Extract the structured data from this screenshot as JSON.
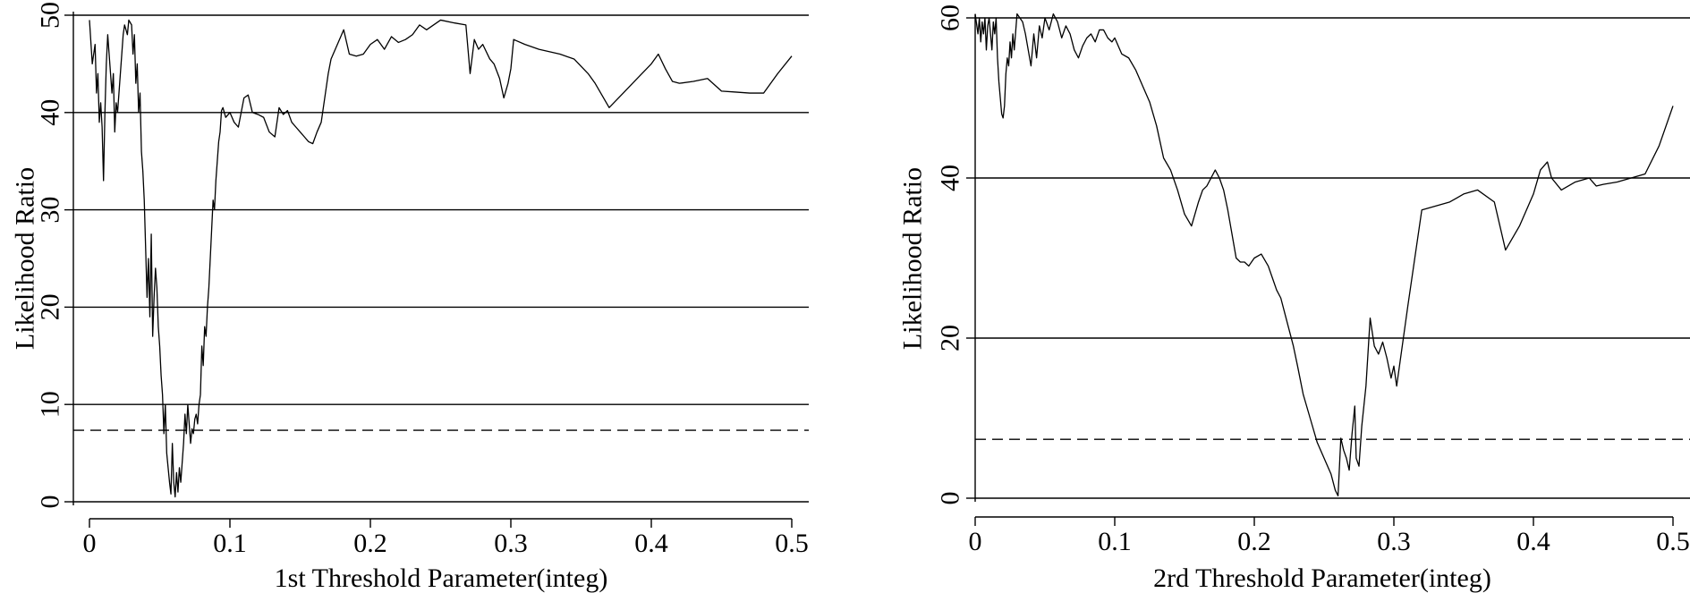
{
  "chart_data": [
    {
      "type": "line",
      "xlabel": "1st Threshold Parameter(integ)",
      "ylabel": "Likelihood Ratio",
      "xlim": [
        0,
        0.5
      ],
      "ylim": [
        0,
        50
      ],
      "xticks": [
        0,
        0.1,
        0.2,
        0.3,
        0.4,
        0.5
      ],
      "yticks": [
        0,
        10,
        20,
        30,
        40,
        50
      ],
      "grid": "horizontal",
      "critical_value": 7.35,
      "series": [
        {
          "x": [
            0.0,
            0.002,
            0.004,
            0.005,
            0.006,
            0.007,
            0.008,
            0.009,
            0.01,
            0.011,
            0.012,
            0.013,
            0.014,
            0.016,
            0.017,
            0.018,
            0.019,
            0.02,
            0.022,
            0.023,
            0.024,
            0.025,
            0.027,
            0.028,
            0.03,
            0.031,
            0.032,
            0.033,
            0.034,
            0.035,
            0.036,
            0.037,
            0.038,
            0.039,
            0.04,
            0.041,
            0.042,
            0.043,
            0.044,
            0.045,
            0.046,
            0.047,
            0.048,
            0.049,
            0.05,
            0.051,
            0.052,
            0.053,
            0.054,
            0.055,
            0.056,
            0.057,
            0.058,
            0.059,
            0.06,
            0.061,
            0.062,
            0.063,
            0.064,
            0.065,
            0.066,
            0.067,
            0.068,
            0.069,
            0.07,
            0.071,
            0.072,
            0.073,
            0.074,
            0.075,
            0.076,
            0.077,
            0.078,
            0.079,
            0.08,
            0.081,
            0.082,
            0.083,
            0.084,
            0.085,
            0.086,
            0.087,
            0.088,
            0.089,
            0.09,
            0.091,
            0.092,
            0.093,
            0.094,
            0.095,
            0.097,
            0.1,
            0.103,
            0.106,
            0.11,
            0.113,
            0.116,
            0.12,
            0.124,
            0.128,
            0.132,
            0.135,
            0.138,
            0.141,
            0.144,
            0.147,
            0.15,
            0.153,
            0.156,
            0.159,
            0.162,
            0.165,
            0.168,
            0.17,
            0.172,
            0.175,
            0.178,
            0.181,
            0.185,
            0.19,
            0.195,
            0.2,
            0.205,
            0.21,
            0.215,
            0.22,
            0.225,
            0.23,
            0.235,
            0.24,
            0.25,
            0.26,
            0.268,
            0.271,
            0.274,
            0.277,
            0.28,
            0.285,
            0.288,
            0.292,
            0.295,
            0.298,
            0.3,
            0.302,
            0.31,
            0.32,
            0.335,
            0.345,
            0.355,
            0.36,
            0.37,
            0.38,
            0.39,
            0.4,
            0.405,
            0.41,
            0.415,
            0.42,
            0.43,
            0.44,
            0.45,
            0.46,
            0.47,
            0.48,
            0.49,
            0.5
          ],
          "y": [
            49.5,
            45.0,
            47.0,
            42.0,
            44.0,
            39.0,
            41.0,
            38.5,
            33.0,
            40.0,
            45.0,
            48.0,
            46.0,
            42.0,
            44.0,
            38.0,
            41.0,
            40.0,
            44.0,
            46.0,
            48.0,
            49.0,
            48.0,
            49.5,
            49.0,
            46.0,
            48.0,
            43.0,
            45.0,
            40.0,
            42.0,
            36.0,
            34.0,
            31.0,
            26.0,
            21.0,
            25.0,
            19.0,
            27.5,
            17.0,
            21.0,
            24.0,
            22.0,
            18.0,
            16.0,
            13.0,
            11.0,
            7.0,
            10.0,
            5.0,
            3.5,
            2.0,
            0.8,
            6.0,
            2.0,
            0.5,
            3.0,
            1.0,
            3.5,
            2.0,
            4.0,
            6.0,
            9.0,
            7.0,
            10.0,
            8.0,
            6.0,
            7.5,
            7.0,
            8.5,
            9.0,
            8.0,
            10.0,
            11.0,
            16.0,
            14.0,
            18.0,
            17.0,
            20.0,
            22.0,
            25.0,
            28.0,
            31.0,
            30.0,
            33.0,
            35.0,
            37.0,
            38.0,
            40.2,
            40.5,
            39.5,
            40.0,
            39.0,
            38.5,
            41.5,
            41.8,
            40.0,
            39.8,
            39.5,
            38.0,
            37.5,
            40.5,
            39.8,
            40.2,
            39.0,
            38.5,
            38.0,
            37.5,
            37.0,
            36.8,
            38.0,
            39.0,
            42.0,
            44.0,
            45.5,
            46.5,
            47.5,
            48.5,
            46.0,
            45.8,
            46.0,
            47.0,
            47.5,
            46.5,
            47.8,
            47.2,
            47.5,
            48.0,
            49.0,
            48.5,
            49.5,
            49.2,
            49.0,
            44.0,
            47.5,
            46.5,
            47.0,
            45.5,
            45.0,
            43.5,
            41.5,
            43.0,
            44.5,
            47.5,
            47.0,
            46.5,
            46.0,
            45.5,
            44.0,
            43.0,
            40.5,
            42.0,
            43.5,
            45.0,
            46.0,
            44.5,
            43.2,
            43.0,
            43.2,
            43.5,
            42.2,
            42.1,
            42.0,
            42.0,
            44.0,
            45.8
          ]
        }
      ]
    },
    {
      "type": "line",
      "xlabel": "2rd Threshold Parameter(integ)",
      "ylabel": "Likelihood Ratio",
      "xlim": [
        0,
        0.5
      ],
      "ylim": [
        0,
        60
      ],
      "xticks": [
        0,
        0.1,
        0.2,
        0.3,
        0.4,
        0.5
      ],
      "yticks": [
        0,
        20,
        40,
        60
      ],
      "grid": "horizontal",
      "critical_value": 7.35,
      "series": [
        {
          "x": [
            0.0,
            0.002,
            0.003,
            0.004,
            0.005,
            0.006,
            0.007,
            0.008,
            0.009,
            0.01,
            0.012,
            0.013,
            0.014,
            0.015,
            0.016,
            0.017,
            0.018,
            0.019,
            0.02,
            0.021,
            0.022,
            0.023,
            0.024,
            0.025,
            0.026,
            0.027,
            0.028,
            0.03,
            0.032,
            0.034,
            0.036,
            0.038,
            0.04,
            0.042,
            0.044,
            0.046,
            0.048,
            0.05,
            0.053,
            0.056,
            0.059,
            0.062,
            0.065,
            0.068,
            0.071,
            0.074,
            0.077,
            0.08,
            0.083,
            0.086,
            0.089,
            0.092,
            0.095,
            0.098,
            0.1,
            0.105,
            0.11,
            0.115,
            0.12,
            0.125,
            0.13,
            0.135,
            0.14,
            0.145,
            0.15,
            0.155,
            0.16,
            0.163,
            0.166,
            0.169,
            0.172,
            0.175,
            0.178,
            0.181,
            0.184,
            0.187,
            0.19,
            0.193,
            0.196,
            0.2,
            0.205,
            0.21,
            0.213,
            0.216,
            0.219,
            0.222,
            0.225,
            0.228,
            0.231,
            0.235,
            0.24,
            0.245,
            0.25,
            0.255,
            0.258,
            0.26,
            0.262,
            0.264,
            0.266,
            0.268,
            0.27,
            0.272,
            0.273,
            0.275,
            0.277,
            0.28,
            0.283,
            0.286,
            0.289,
            0.292,
            0.295,
            0.298,
            0.3,
            0.302,
            0.31,
            0.32,
            0.34,
            0.345,
            0.35,
            0.36,
            0.372,
            0.38,
            0.39,
            0.4,
            0.405,
            0.41,
            0.413,
            0.42,
            0.43,
            0.44,
            0.445,
            0.45,
            0.46,
            0.47,
            0.48,
            0.49,
            0.5
          ],
          "y": [
            60.5,
            58.0,
            60.0,
            57.0,
            59.5,
            58.0,
            60.0,
            56.0,
            59.0,
            60.0,
            56.0,
            59.5,
            58.0,
            60.0,
            55.0,
            52.0,
            50.0,
            48.0,
            47.5,
            49.0,
            53.0,
            55.0,
            54.0,
            57.0,
            55.0,
            58.0,
            56.0,
            60.5,
            60.0,
            59.5,
            58.0,
            56.0,
            54.0,
            58.0,
            55.0,
            59.0,
            57.5,
            60.0,
            58.5,
            60.5,
            59.5,
            57.5,
            59.0,
            58.0,
            56.0,
            55.0,
            56.5,
            57.5,
            58.0,
            57.0,
            58.5,
            58.5,
            57.5,
            57.0,
            57.5,
            55.5,
            55.0,
            53.5,
            51.5,
            49.5,
            46.5,
            42.5,
            41.0,
            38.5,
            35.5,
            34.0,
            37.0,
            38.5,
            39.0,
            40.0,
            41.0,
            40.0,
            38.5,
            36.0,
            33.0,
            30.0,
            29.5,
            29.5,
            29.0,
            30.0,
            30.5,
            29.0,
            27.5,
            26.0,
            25.0,
            23.0,
            21.0,
            19.0,
            16.5,
            13.0,
            10.0,
            7.0,
            5.0,
            3.0,
            1.0,
            0.3,
            7.5,
            6.0,
            5.0,
            3.5,
            8.0,
            11.5,
            5.0,
            4.0,
            9.0,
            14.0,
            22.5,
            19.0,
            18.0,
            19.5,
            17.5,
            15.0,
            16.5,
            14.0,
            24.0,
            36.0,
            37.0,
            37.5,
            38.0,
            38.5,
            37.0,
            31.0,
            34.0,
            38.0,
            41.0,
            42.0,
            40.0,
            38.5,
            39.5,
            40.0,
            39.0,
            39.2,
            39.5,
            40.0,
            40.5,
            44.0,
            49.0
          ]
        }
      ]
    }
  ]
}
